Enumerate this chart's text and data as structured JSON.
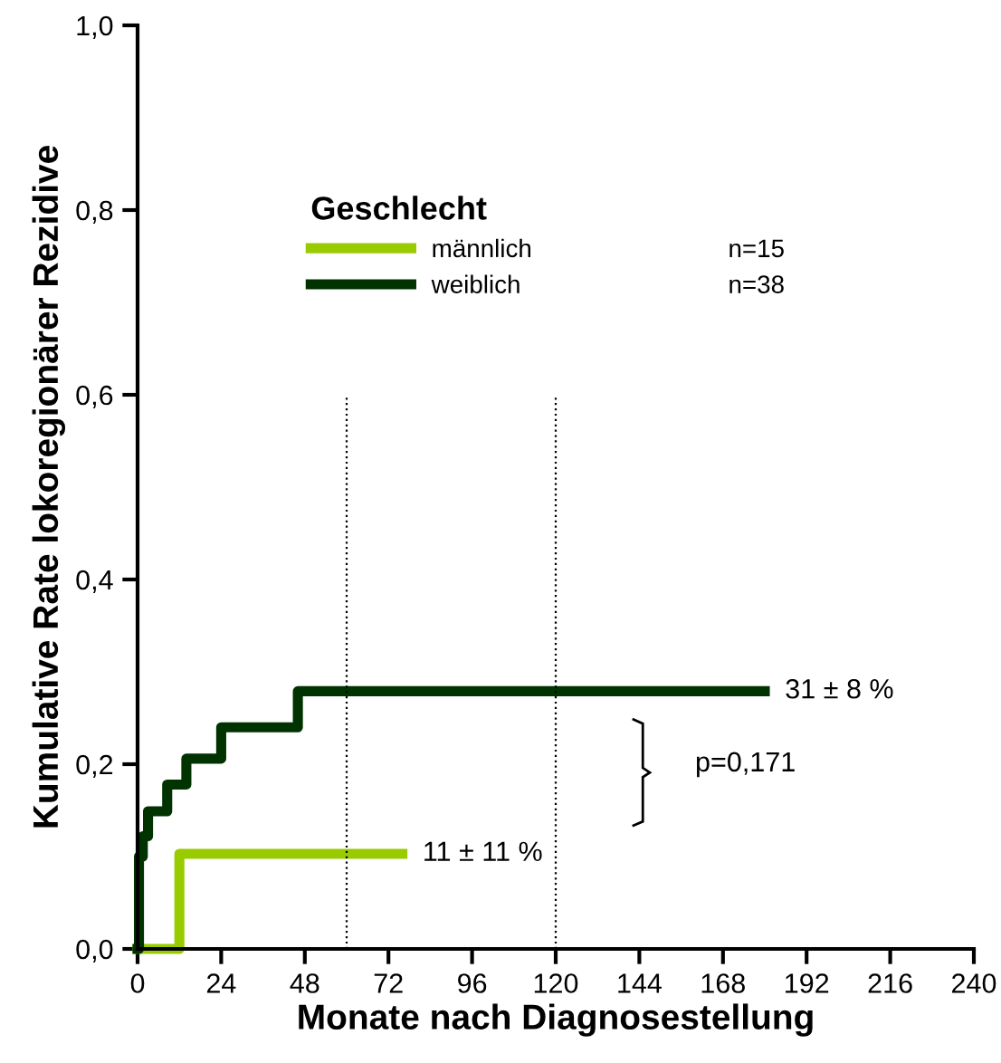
{
  "chart_data": {
    "type": "step",
    "xlabel": "Monate nach Diagnosestellung",
    "ylabel": "Kumulative Rate lokoregionärer Rezidive",
    "legend_title": "Geschlecht",
    "legend": "top left",
    "grid": false,
    "xlim": [
      0,
      240
    ],
    "xticks": [
      0,
      24,
      48,
      72,
      96,
      120,
      144,
      168,
      192,
      216,
      240
    ],
    "ylim": [
      0,
      1.0
    ],
    "yticks": [
      {
        "value": 0,
        "label": "0,0"
      },
      {
        "value": 0.2,
        "label": "0,2"
      },
      {
        "value": 0.4,
        "label": "0,4"
      },
      {
        "value": 0.6,
        "label": "0,6"
      },
      {
        "value": 0.8,
        "label": "0,8"
      },
      {
        "value": 1.0,
        "label": "1,0"
      }
    ],
    "series": [
      {
        "name": "männlich",
        "color": "#99cc00",
        "x": [
          0,
          12,
          76
        ],
        "values": [
          0,
          0.103,
          0.103
        ]
      },
      {
        "name": "weiblich",
        "color": "#003300",
        "x": [
          0,
          0.4,
          1.5,
          3,
          8.5,
          14,
          24,
          46,
          180
        ],
        "values": [
          0,
          0.1,
          0.122,
          0.149,
          0.178,
          0.206,
          0.24,
          0.279,
          0.279
        ]
      }
    ],
    "ref_lines": [
      {
        "axis": "x",
        "value": 60,
        "line_style": "dotted",
        "color": "#000000"
      },
      {
        "axis": "x",
        "value": 120,
        "line_style": "dotted",
        "color": "#000000"
      }
    ],
    "annotations": [
      {
        "text": "11 ± 11 %",
        "x": 76,
        "y": 0.103
      },
      {
        "text": "31 ± 8 %",
        "x": 180,
        "y": 0.279
      },
      "p=0,171",
      "n=15",
      "n=38"
    ]
  }
}
